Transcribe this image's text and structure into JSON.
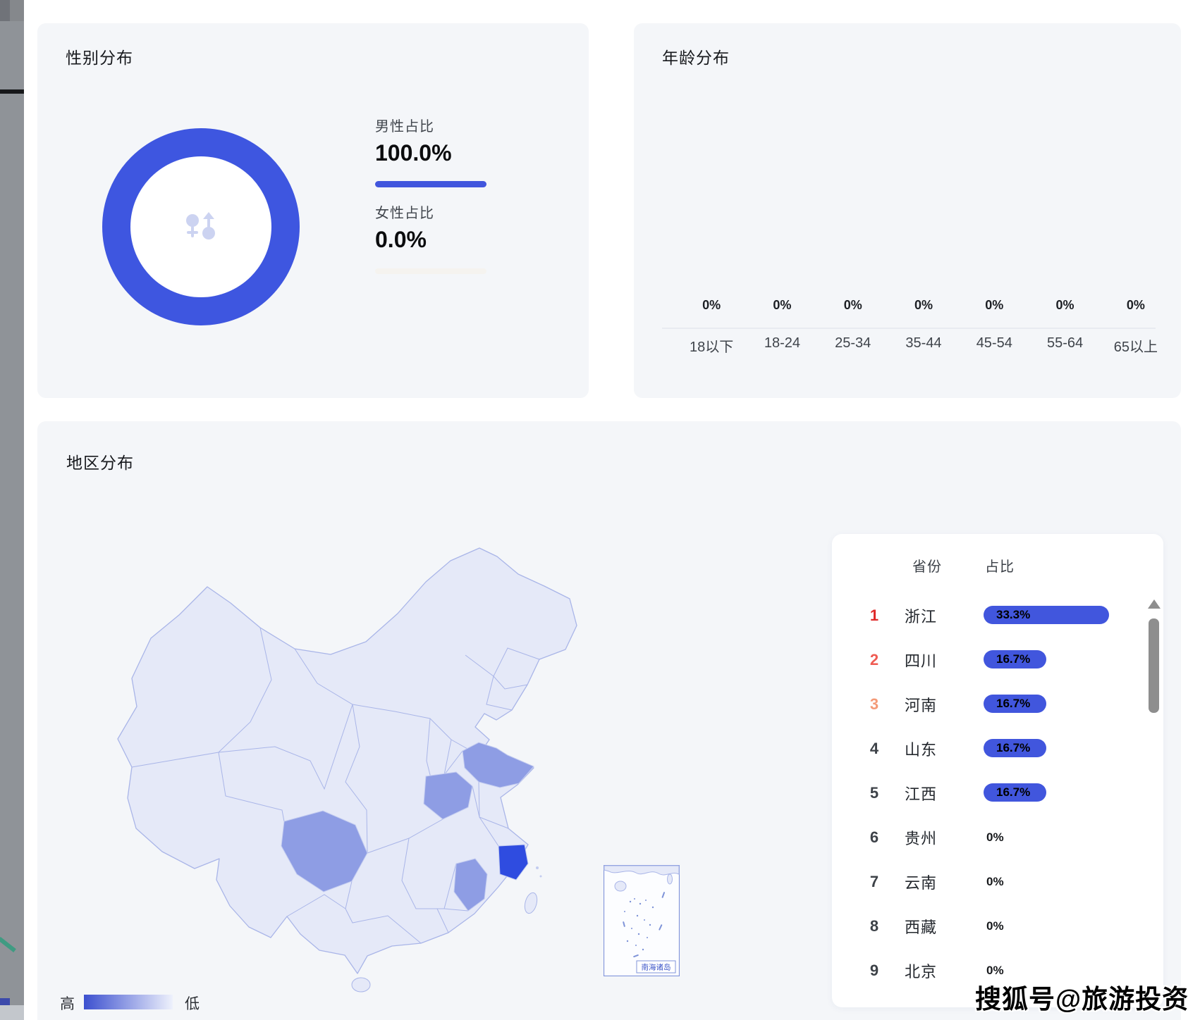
{
  "colors": {
    "accent": "#4156dd",
    "donut_ring": "#3e56e0",
    "female_bar": "#f5f3ef",
    "icon_tint": "#ccd3f1",
    "map_base": "#e5e9f8",
    "map_mid": "#8e9de4",
    "map_high": "#2f4ce0",
    "map_stroke": "#a9b5e8",
    "legend_gradient_start": "#3c50cf",
    "legend_gradient_end": "#eef1fc",
    "rank1": "#df2b2b",
    "rank2": "#ef5b52",
    "rank3": "#f49a77",
    "rank_default": "#3d4248"
  },
  "gender_card": {
    "title": "性别分布",
    "male_label": "男性占比",
    "male_value": "100.0%",
    "female_label": "女性占比",
    "female_value": "0.0%"
  },
  "age_card": {
    "title": "年龄分布",
    "columns": [
      {
        "label": "18以下",
        "value": "0%"
      },
      {
        "label": "18-24",
        "value": "0%"
      },
      {
        "label": "25-34",
        "value": "0%"
      },
      {
        "label": "35-44",
        "value": "0%"
      },
      {
        "label": "45-54",
        "value": "0%"
      },
      {
        "label": "55-64",
        "value": "0%"
      },
      {
        "label": "65以上",
        "value": "0%"
      }
    ]
  },
  "region_card": {
    "title": "地区分布",
    "legend_high": "高",
    "legend_low": "低",
    "inset_label": "南海诸岛",
    "table": {
      "province_header": "省份",
      "share_header": "占比",
      "rows": [
        {
          "rank": "1",
          "province": "浙江",
          "share": "33.3%",
          "pct": 33.3,
          "has_bar": true,
          "rank_color": "#df2b2b"
        },
        {
          "rank": "2",
          "province": "四川",
          "share": "16.7%",
          "pct": 16.7,
          "has_bar": true,
          "rank_color": "#ef5b52"
        },
        {
          "rank": "3",
          "province": "河南",
          "share": "16.7%",
          "pct": 16.7,
          "has_bar": true,
          "rank_color": "#f49a77"
        },
        {
          "rank": "4",
          "province": "山东",
          "share": "16.7%",
          "pct": 16.7,
          "has_bar": true,
          "rank_color": "#3d4248"
        },
        {
          "rank": "5",
          "province": "江西",
          "share": "16.7%",
          "pct": 16.7,
          "has_bar": true,
          "rank_color": "#3d4248"
        },
        {
          "rank": "6",
          "province": "贵州",
          "share": "0%",
          "pct": 0,
          "has_bar": false,
          "rank_color": "#3d4248"
        },
        {
          "rank": "7",
          "province": "云南",
          "share": "0%",
          "pct": 0,
          "has_bar": false,
          "rank_color": "#3d4248"
        },
        {
          "rank": "8",
          "province": "西藏",
          "share": "0%",
          "pct": 0,
          "has_bar": false,
          "rank_color": "#3d4248"
        },
        {
          "rank": "9",
          "province": "北京",
          "share": "0%",
          "pct": 0,
          "has_bar": false,
          "rank_color": "#3d4248"
        }
      ]
    }
  },
  "watermark": "搜狐号@旅游投资",
  "chart_data": [
    {
      "type": "pie",
      "title": "性别分布",
      "series": [
        {
          "name": "男性占比",
          "value": 100.0
        },
        {
          "name": "女性占比",
          "value": 0.0
        }
      ],
      "unit": "%"
    },
    {
      "type": "bar",
      "title": "年龄分布",
      "categories": [
        "18以下",
        "18-24",
        "25-34",
        "35-44",
        "45-54",
        "55-64",
        "65以上"
      ],
      "values": [
        0,
        0,
        0,
        0,
        0,
        0,
        0
      ],
      "unit": "%",
      "ylim": [
        0,
        100
      ],
      "grid": false
    },
    {
      "type": "heatmap",
      "subtype": "china-province-map",
      "title": "地区分布",
      "categories": [
        "浙江",
        "四川",
        "河南",
        "山东",
        "江西",
        "贵州",
        "云南",
        "西藏",
        "北京"
      ],
      "values": [
        33.3,
        16.7,
        16.7,
        16.7,
        16.7,
        0,
        0,
        0,
        0
      ],
      "unit": "%",
      "legend": {
        "high": "高",
        "low": "低",
        "position": "bottom-left"
      }
    }
  ]
}
